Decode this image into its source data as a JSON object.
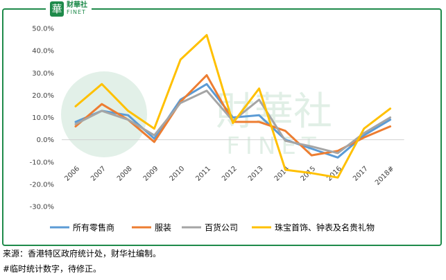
{
  "logo": {
    "seal": "華",
    "cn": "财華社",
    "en": "FINET"
  },
  "watermark": {
    "cn": "財華社",
    "en": "FINET"
  },
  "notes": {
    "source": "来源：香港特区政府统计处，财华社编制。",
    "footnote": "#临时统计数字，待修正。"
  },
  "chart_data": {
    "type": "line",
    "title": "",
    "xlabel": "",
    "ylabel": "",
    "categories": [
      "2006",
      "2007",
      "2008",
      "2009",
      "2010",
      "2011",
      "2012",
      "2013",
      "2014",
      "2015",
      "2016",
      "2017",
      "2018#"
    ],
    "y_ticks": [
      "50.0%",
      "40.0%",
      "30.0%",
      "20.0%",
      "10.0%",
      "0.0%",
      "-10.0%",
      "-20.0%",
      "-30.0%"
    ],
    "ylim": [
      -30,
      50
    ],
    "grid": false,
    "legend_position": "bottom",
    "series": [
      {
        "name": "所有零售商",
        "color": "#5b9bd5",
        "values": [
          8.0,
          13.0,
          11.0,
          0.5,
          18.0,
          25.0,
          10.0,
          11.0,
          0.0,
          -4.0,
          -8.0,
          2.0,
          9.0
        ]
      },
      {
        "name": "服装",
        "color": "#ed7d31",
        "values": [
          6.0,
          16.0,
          9.0,
          -1.0,
          17.0,
          29.0,
          8.0,
          8.0,
          4.0,
          -7.0,
          -5.0,
          1.0,
          6.0
        ]
      },
      {
        "name": "百货公司",
        "color": "#a5a5a5",
        "values": [
          7.0,
          13.0,
          9.0,
          2.0,
          16.5,
          22.0,
          8.5,
          18.0,
          -0.5,
          -3.0,
          -6.0,
          3.0,
          10.0
        ]
      },
      {
        "name": "珠宝首饰、钟表及名贵礼物",
        "color": "#ffc000",
        "values": [
          15.0,
          25.0,
          13.0,
          5.0,
          36.0,
          47.0,
          7.5,
          23.0,
          -13.5,
          -15.0,
          -17.0,
          5.0,
          14.0
        ]
      }
    ]
  }
}
